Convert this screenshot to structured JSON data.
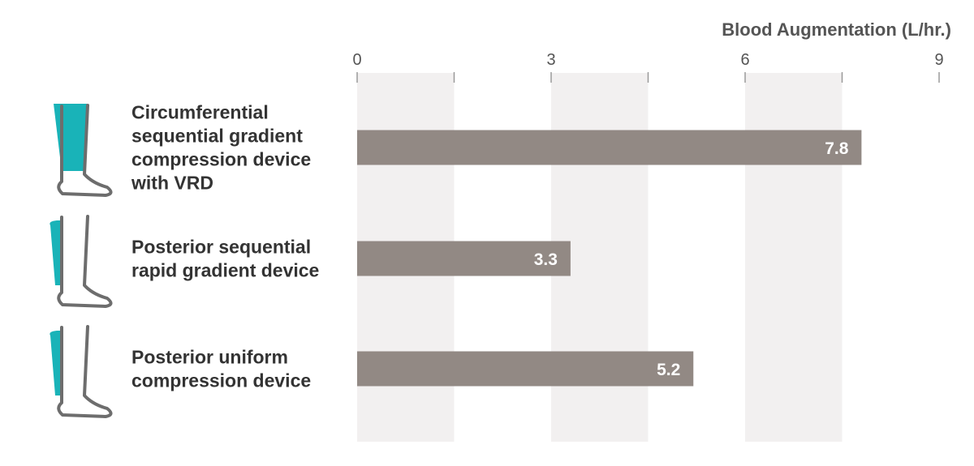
{
  "colors": {
    "bar": "#928984",
    "band": "#f2f0f0",
    "accent": "#19b3b8",
    "outline": "#6d6d6d",
    "text": "#333333",
    "axis_text": "#555555"
  },
  "chart_data": {
    "type": "bar",
    "orientation": "horizontal",
    "xlabel": "Blood Augmentation (L/hr.)",
    "xlim": [
      0,
      9
    ],
    "xticks": [
      0,
      3,
      6,
      9
    ],
    "grid": "alternating vertical bands",
    "categories": [
      {
        "lines": [
          "Circumferential",
          "sequential gradient",
          "compression device",
          "with VRD"
        ],
        "icon": "full-leg-wrap-icon"
      },
      {
        "lines": [
          "Posterior sequential",
          "rapid gradient device"
        ],
        "icon": "posterior-calf-sleeve-icon"
      },
      {
        "lines": [
          "Posterior uniform",
          "compression device"
        ],
        "icon": "posterior-calf-sleeve-icon"
      }
    ],
    "values": [
      7.8,
      3.3,
      5.2
    ],
    "value_labels": [
      "7.8",
      "3.3",
      "5.2"
    ]
  }
}
